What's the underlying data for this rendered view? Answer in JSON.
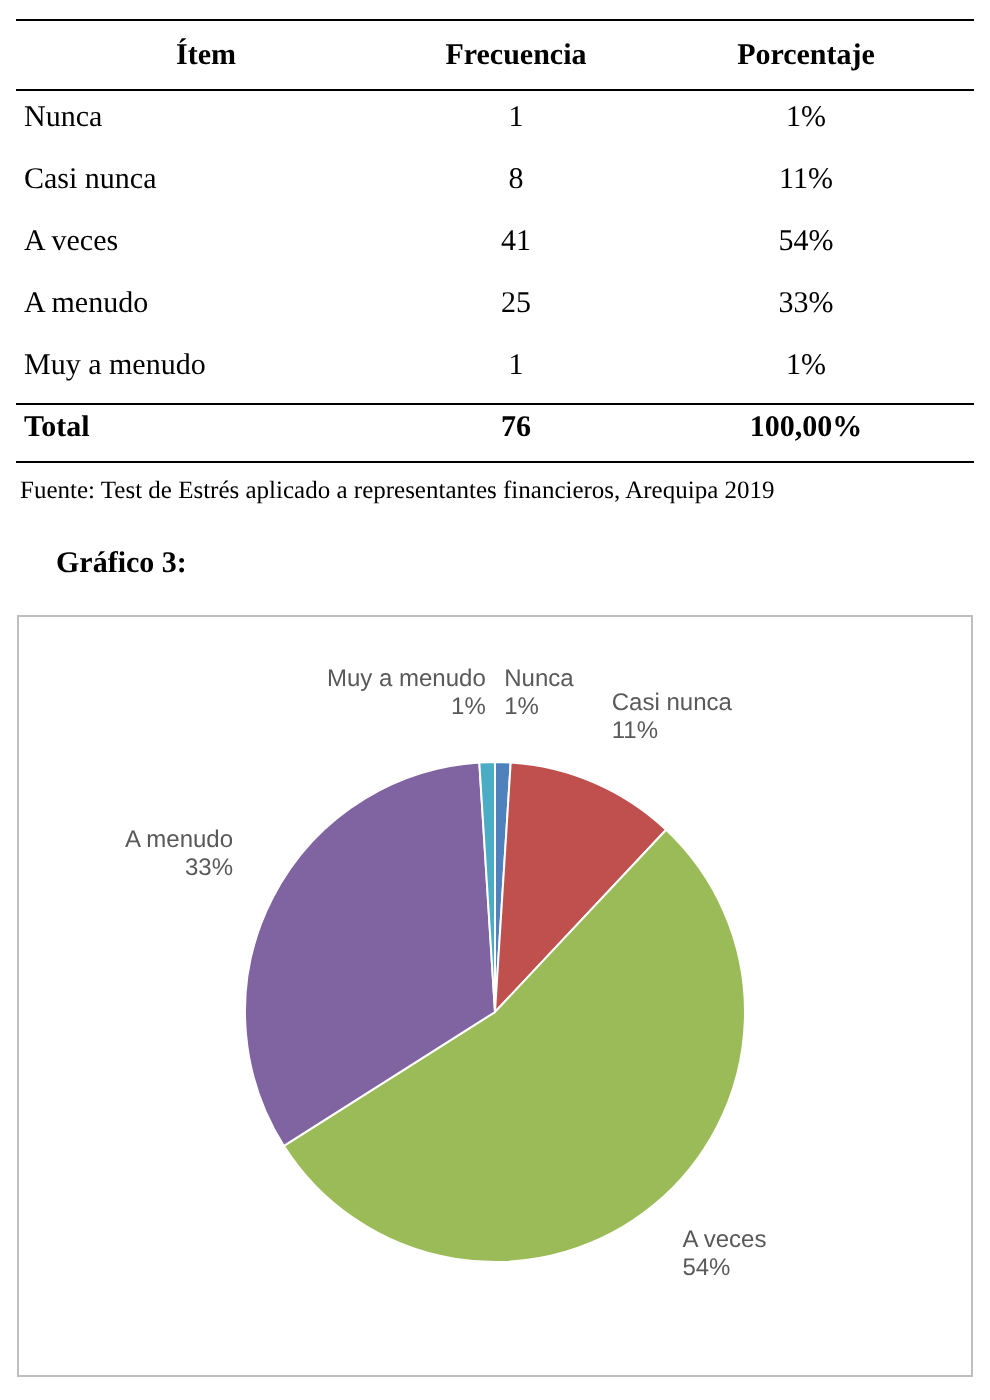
{
  "chart_data": [
    {
      "type": "other",
      "annotations": [
        "Ítem",
        "Frecuencia",
        "Porcentaje",
        "Nunca",
        "1",
        "1%",
        "Casi nunca",
        "8",
        "11%",
        "A veces",
        "41",
        "54%",
        "A menudo",
        "25",
        "33%",
        "Muy a menudo",
        "1",
        "1%",
        "Total",
        "76",
        "100,00%",
        "Fuente: Test de Estrés aplicado a representantes financieros, Arequipa 2019"
      ]
    },
    {
      "type": "pie",
      "title": "Gráfico 3:",
      "categories": [
        "Nunca",
        "Casi nunca",
        "A veces",
        "A menudo",
        "Muy a menudo"
      ],
      "values": [
        1,
        11,
        54,
        33,
        1
      ],
      "value_labels": [
        "1%",
        "11%",
        "54%",
        "33%",
        "1%"
      ],
      "colors": [
        "#4f81bd",
        "#c0504d",
        "#9bbb59",
        "#8064a2",
        "#4bacc6"
      ]
    }
  ]
}
